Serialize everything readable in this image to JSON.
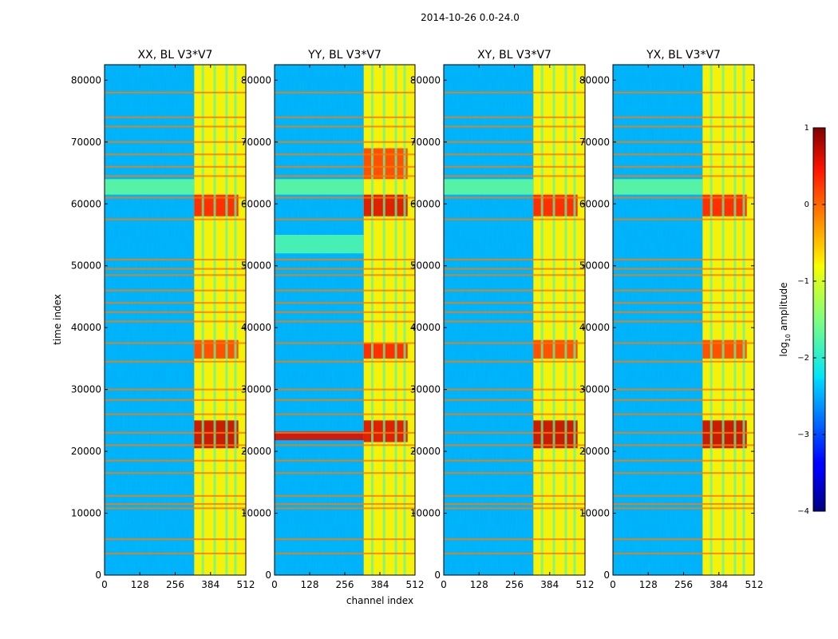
{
  "figure": {
    "suptitle": "2014-10-26 0.0-24.0"
  },
  "chart_data": {
    "type": "heatmap",
    "xlabel": "channel index",
    "ylabel": "time index",
    "xlim": [
      0,
      512
    ],
    "ylim": [
      0,
      82500
    ],
    "x_ticks": [
      0,
      128,
      256,
      384,
      512
    ],
    "y_ticks": [
      0,
      10000,
      20000,
      30000,
      40000,
      50000,
      60000,
      70000,
      80000
    ],
    "panels": [
      {
        "title": "XX, BL V3*V7",
        "bands": [
          {
            "y0": 0,
            "y1": 82500,
            "x0": 325,
            "x1": 512,
            "log_amp": -0.8
          },
          {
            "y0": 58000,
            "y1": 61500,
            "x0": 325,
            "x1": 485,
            "log_amp": 0.4
          },
          {
            "y0": 35000,
            "y1": 38000,
            "x0": 325,
            "x1": 485,
            "log_amp": 0.2
          },
          {
            "y0": 20500,
            "y1": 25000,
            "x0": 325,
            "x1": 485,
            "log_amp": 0.7
          },
          {
            "y0": 61500,
            "y1": 64000,
            "x0": 0,
            "x1": 325,
            "log_amp": -1.7
          }
        ]
      },
      {
        "title": "YY, BL V3*V7",
        "bands": [
          {
            "y0": 0,
            "y1": 82500,
            "x0": 325,
            "x1": 512,
            "log_amp": -0.8
          },
          {
            "y0": 58000,
            "y1": 61500,
            "x0": 325,
            "x1": 485,
            "log_amp": 0.6
          },
          {
            "y0": 64000,
            "y1": 69000,
            "x0": 325,
            "x1": 485,
            "log_amp": 0.2
          },
          {
            "y0": 35000,
            "y1": 37500,
            "x0": 325,
            "x1": 485,
            "log_amp": 0.4
          },
          {
            "y0": 21500,
            "y1": 25000,
            "x0": 325,
            "x1": 485,
            "log_amp": 0.6
          },
          {
            "y0": 21800,
            "y1": 23200,
            "x0": 0,
            "x1": 325,
            "log_amp": 0.6
          },
          {
            "y0": 52000,
            "y1": 55000,
            "x0": 0,
            "x1": 325,
            "log_amp": -1.8
          },
          {
            "y0": 61500,
            "y1": 64000,
            "x0": 0,
            "x1": 325,
            "log_amp": -1.7
          }
        ]
      },
      {
        "title": "XY, BL V3*V7",
        "bands": [
          {
            "y0": 0,
            "y1": 82500,
            "x0": 325,
            "x1": 512,
            "log_amp": -0.8
          },
          {
            "y0": 58000,
            "y1": 61500,
            "x0": 325,
            "x1": 485,
            "log_amp": 0.4
          },
          {
            "y0": 35000,
            "y1": 38000,
            "x0": 325,
            "x1": 485,
            "log_amp": 0.2
          },
          {
            "y0": 20500,
            "y1": 25000,
            "x0": 325,
            "x1": 485,
            "log_amp": 0.7
          },
          {
            "y0": 61500,
            "y1": 64000,
            "x0": 0,
            "x1": 325,
            "log_amp": -1.7
          }
        ]
      },
      {
        "title": "YX, BL V3*V7",
        "bands": [
          {
            "y0": 0,
            "y1": 82500,
            "x0": 325,
            "x1": 512,
            "log_amp": -0.8
          },
          {
            "y0": 58000,
            "y1": 61500,
            "x0": 325,
            "x1": 485,
            "log_amp": 0.4
          },
          {
            "y0": 35000,
            "y1": 38000,
            "x0": 325,
            "x1": 485,
            "log_amp": 0.2
          },
          {
            "y0": 20500,
            "y1": 25000,
            "x0": 325,
            "x1": 485,
            "log_amp": 0.7
          },
          {
            "y0": 61500,
            "y1": 64000,
            "x0": 0,
            "x1": 325,
            "log_amp": -1.7
          }
        ]
      }
    ],
    "background_log_amp": -2.5,
    "rfi_rows": [
      3500,
      5800,
      10800,
      11500,
      12800,
      16500,
      18500,
      21000,
      23000,
      26000,
      28300,
      30000,
      34500,
      37500,
      41000,
      42500,
      44000,
      46000,
      48500,
      49500,
      51000,
      57500,
      61000,
      64500,
      66000,
      68000,
      70000,
      72500,
      74000,
      78000
    ],
    "rfi_log_amp": -0.1,
    "colorbar": {
      "label": "log",
      "label_sub": "10",
      "label_suffix": " amplitude",
      "range": [
        -4,
        1
      ],
      "ticks": [
        1,
        0,
        -1,
        -2,
        -3,
        -4
      ],
      "tick_labels": [
        "1",
        "0",
        "−1",
        "−2",
        "−3",
        "−4"
      ],
      "colormap": "jet"
    }
  }
}
